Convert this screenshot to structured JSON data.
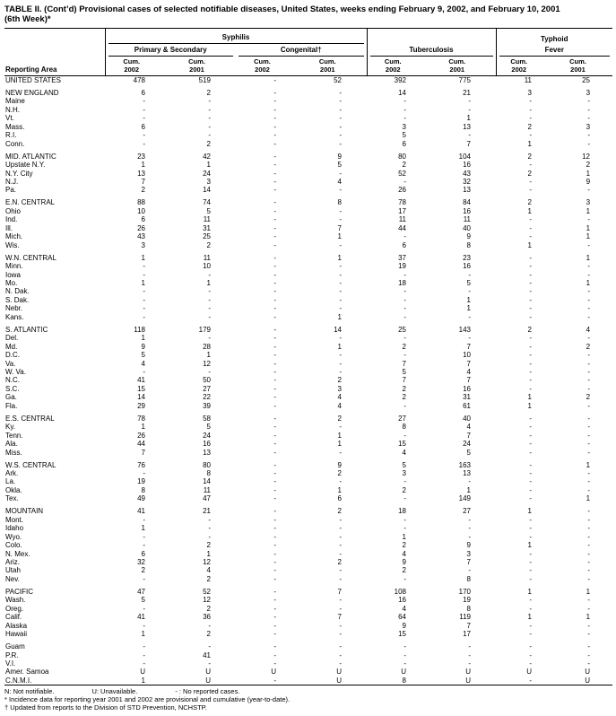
{
  "page": {
    "title_line1": "TABLE II. (Cont’d) Provisional cases of selected notifiable diseases, United States, weeks ending February 9, 2002, and February 10, 2001",
    "title_line2": "(6th Week)*"
  },
  "table": {
    "header": {
      "reporting_area": "Reporting Area",
      "groups": {
        "syphilis": "Syphilis",
        "typhoid": "Typhoid"
      },
      "subgroups": {
        "primary_secondary": "Primary & Secondary",
        "congenital": "Congenital†",
        "tuberculosis": "Tuberculosis",
        "fever": "Fever"
      },
      "cum_columns": [
        {
          "line1": "Cum.",
          "line2": "2002"
        },
        {
          "line1": "Cum.",
          "line2": "2001"
        },
        {
          "line1": "Cum.",
          "line2": "2002"
        },
        {
          "line1": "Cum.",
          "line2": "2001"
        },
        {
          "line1": "Cum.",
          "line2": "2002"
        },
        {
          "line1": "Cum.",
          "line2": "2001"
        },
        {
          "line1": "Cum.",
          "line2": "2002"
        },
        {
          "line1": "Cum.",
          "line2": "2001"
        }
      ]
    },
    "groups": [
      {
        "rows": [
          {
            "area": "UNITED STATES",
            "values": [
              "478",
              "519",
              "-",
              "52",
              "392",
              "775",
              "11",
              "25"
            ]
          }
        ]
      },
      {
        "rows": [
          {
            "area": "NEW ENGLAND",
            "values": [
              "6",
              "2",
              "-",
              "-",
              "14",
              "21",
              "3",
              "3"
            ]
          },
          {
            "area": "Maine",
            "values": [
              "-",
              "-",
              "-",
              "-",
              "-",
              "-",
              "-",
              "-"
            ]
          },
          {
            "area": "N.H.",
            "values": [
              "-",
              "-",
              "-",
              "-",
              "-",
              "-",
              "-",
              "-"
            ]
          },
          {
            "area": "Vt.",
            "values": [
              "-",
              "-",
              "-",
              "-",
              "-",
              "1",
              "-",
              "-"
            ]
          },
          {
            "area": "Mass.",
            "values": [
              "6",
              "-",
              "-",
              "-",
              "3",
              "13",
              "2",
              "3"
            ]
          },
          {
            "area": "R.I.",
            "values": [
              "-",
              "-",
              "-",
              "-",
              "5",
              "-",
              "-",
              "-"
            ]
          },
          {
            "area": "Conn.",
            "values": [
              "-",
              "2",
              "-",
              "-",
              "6",
              "7",
              "1",
              "-"
            ]
          }
        ]
      },
      {
        "rows": [
          {
            "area": "MID. ATLANTIC",
            "values": [
              "23",
              "42",
              "-",
              "9",
              "80",
              "104",
              "2",
              "12"
            ]
          },
          {
            "area": "Upstate N.Y.",
            "values": [
              "1",
              "1",
              "-",
              "5",
              "2",
              "16",
              "-",
              "2"
            ]
          },
          {
            "area": "N.Y. City",
            "values": [
              "13",
              "24",
              "-",
              "-",
              "52",
              "43",
              "2",
              "1"
            ]
          },
          {
            "area": "N.J.",
            "values": [
              "7",
              "3",
              "-",
              "4",
              "-",
              "32",
              "-",
              "9"
            ]
          },
          {
            "area": "Pa.",
            "values": [
              "2",
              "14",
              "-",
              "-",
              "26",
              "13",
              "-",
              "-"
            ]
          }
        ]
      },
      {
        "rows": [
          {
            "area": "E.N. CENTRAL",
            "values": [
              "88",
              "74",
              "-",
              "8",
              "78",
              "84",
              "2",
              "3"
            ]
          },
          {
            "area": "Ohio",
            "values": [
              "10",
              "5",
              "-",
              "-",
              "17",
              "16",
              "1",
              "1"
            ]
          },
          {
            "area": "Ind.",
            "values": [
              "6",
              "11",
              "-",
              "-",
              "11",
              "11",
              "-",
              "-"
            ]
          },
          {
            "area": "Ill.",
            "values": [
              "26",
              "31",
              "-",
              "7",
              "44",
              "40",
              "-",
              "1"
            ]
          },
          {
            "area": "Mich.",
            "values": [
              "43",
              "25",
              "-",
              "1",
              "-",
              "9",
              "-",
              "1"
            ]
          },
          {
            "area": "Wis.",
            "values": [
              "3",
              "2",
              "-",
              "-",
              "6",
              "8",
              "1",
              "-"
            ]
          }
        ]
      },
      {
        "rows": [
          {
            "area": "W.N. CENTRAL",
            "values": [
              "1",
              "11",
              "-",
              "1",
              "37",
              "23",
              "-",
              "1"
            ]
          },
          {
            "area": "Minn.",
            "values": [
              "-",
              "10",
              "-",
              "-",
              "19",
              "16",
              "-",
              "-"
            ]
          },
          {
            "area": "Iowa",
            "values": [
              "-",
              "-",
              "-",
              "-",
              "-",
              "-",
              "-",
              "-"
            ]
          },
          {
            "area": "Mo.",
            "values": [
              "1",
              "1",
              "-",
              "-",
              "18",
              "5",
              "-",
              "1"
            ]
          },
          {
            "area": "N. Dak.",
            "values": [
              "-",
              "-",
              "-",
              "-",
              "-",
              "-",
              "-",
              "-"
            ]
          },
          {
            "area": "S. Dak.",
            "values": [
              "-",
              "-",
              "-",
              "-",
              "-",
              "1",
              "-",
              "-"
            ]
          },
          {
            "area": "Nebr.",
            "values": [
              "-",
              "-",
              "-",
              "-",
              "-",
              "1",
              "-",
              "-"
            ]
          },
          {
            "area": "Kans.",
            "values": [
              "-",
              "-",
              "-",
              "1",
              "-",
              "-",
              "-",
              "-"
            ]
          }
        ]
      },
      {
        "rows": [
          {
            "area": "S. ATLANTIC",
            "values": [
              "118",
              "179",
              "-",
              "14",
              "25",
              "143",
              "2",
              "4"
            ]
          },
          {
            "area": "Del.",
            "values": [
              "1",
              "-",
              "-",
              "-",
              "-",
              "-",
              "-",
              "-"
            ]
          },
          {
            "area": "Md.",
            "values": [
              "9",
              "28",
              "-",
              "1",
              "2",
              "7",
              "-",
              "2"
            ]
          },
          {
            "area": "D.C.",
            "values": [
              "5",
              "1",
              "-",
              "-",
              "-",
              "10",
              "-",
              "-"
            ]
          },
          {
            "area": "Va.",
            "values": [
              "4",
              "12",
              "-",
              "-",
              "7",
              "7",
              "-",
              "-"
            ]
          },
          {
            "area": "W. Va.",
            "values": [
              "-",
              "-",
              "-",
              "-",
              "5",
              "4",
              "-",
              "-"
            ]
          },
          {
            "area": "N.C.",
            "values": [
              "41",
              "50",
              "-",
              "2",
              "7",
              "7",
              "-",
              "-"
            ]
          },
          {
            "area": "S.C.",
            "values": [
              "15",
              "27",
              "-",
              "3",
              "2",
              "16",
              "-",
              "-"
            ]
          },
          {
            "area": "Ga.",
            "values": [
              "14",
              "22",
              "-",
              "4",
              "2",
              "31",
              "1",
              "2"
            ]
          },
          {
            "area": "Fla.",
            "values": [
              "29",
              "39",
              "-",
              "4",
              "-",
              "61",
              "1",
              "-"
            ]
          }
        ]
      },
      {
        "rows": [
          {
            "area": "E.S. CENTRAL",
            "values": [
              "78",
              "58",
              "-",
              "2",
              "27",
              "40",
              "-",
              "-"
            ]
          },
          {
            "area": "Ky.",
            "values": [
              "1",
              "5",
              "-",
              "-",
              "8",
              "4",
              "-",
              "-"
            ]
          },
          {
            "area": "Tenn.",
            "values": [
              "26",
              "24",
              "-",
              "1",
              "-",
              "7",
              "-",
              "-"
            ]
          },
          {
            "area": "Ala.",
            "values": [
              "44",
              "16",
              "-",
              "1",
              "15",
              "24",
              "-",
              "-"
            ]
          },
          {
            "area": "Miss.",
            "values": [
              "7",
              "13",
              "-",
              "-",
              "4",
              "5",
              "-",
              "-"
            ]
          }
        ]
      },
      {
        "rows": [
          {
            "area": "W.S. CENTRAL",
            "values": [
              "76",
              "80",
              "-",
              "9",
              "5",
              "163",
              "-",
              "1"
            ]
          },
          {
            "area": "Ark.",
            "values": [
              "-",
              "8",
              "-",
              "2",
              "3",
              "13",
              "-",
              "-"
            ]
          },
          {
            "area": "La.",
            "values": [
              "19",
              "14",
              "-",
              "-",
              "-",
              "-",
              "-",
              "-"
            ]
          },
          {
            "area": "Okla.",
            "values": [
              "8",
              "11",
              "-",
              "1",
              "2",
              "1",
              "-",
              "-"
            ]
          },
          {
            "area": "Tex.",
            "values": [
              "49",
              "47",
              "-",
              "6",
              "-",
              "149",
              "-",
              "1"
            ]
          }
        ]
      },
      {
        "rows": [
          {
            "area": "MOUNTAIN",
            "values": [
              "41",
              "21",
              "-",
              "2",
              "18",
              "27",
              "1",
              "-"
            ]
          },
          {
            "area": "Mont.",
            "values": [
              "-",
              "-",
              "-",
              "-",
              "-",
              "-",
              "-",
              "-"
            ]
          },
          {
            "area": "Idaho",
            "values": [
              "1",
              "-",
              "-",
              "-",
              "-",
              "-",
              "-",
              "-"
            ]
          },
          {
            "area": "Wyo.",
            "values": [
              "-",
              "-",
              "-",
              "-",
              "1",
              "-",
              "-",
              "-"
            ]
          },
          {
            "area": "Colo.",
            "values": [
              "-",
              "2",
              "-",
              "-",
              "2",
              "9",
              "1",
              "-"
            ]
          },
          {
            "area": "N. Mex.",
            "values": [
              "6",
              "1",
              "-",
              "-",
              "4",
              "3",
              "-",
              "-"
            ]
          },
          {
            "area": "Ariz.",
            "values": [
              "32",
              "12",
              "-",
              "2",
              "9",
              "7",
              "-",
              "-"
            ]
          },
          {
            "area": "Utah",
            "values": [
              "2",
              "4",
              "-",
              "-",
              "2",
              "-",
              "-",
              "-"
            ]
          },
          {
            "area": "Nev.",
            "values": [
              "-",
              "2",
              "-",
              "-",
              "-",
              "8",
              "-",
              "-"
            ]
          }
        ]
      },
      {
        "rows": [
          {
            "area": "PACIFIC",
            "values": [
              "47",
              "52",
              "-",
              "7",
              "108",
              "170",
              "1",
              "1"
            ]
          },
          {
            "area": "Wash.",
            "values": [
              "5",
              "12",
              "-",
              "-",
              "16",
              "19",
              "-",
              "-"
            ]
          },
          {
            "area": "Oreg.",
            "values": [
              "-",
              "2",
              "-",
              "-",
              "4",
              "8",
              "-",
              "-"
            ]
          },
          {
            "area": "Calif.",
            "values": [
              "41",
              "36",
              "-",
              "7",
              "64",
              "119",
              "1",
              "1"
            ]
          },
          {
            "area": "Alaska",
            "values": [
              "-",
              "-",
              "-",
              "-",
              "9",
              "7",
              "-",
              "-"
            ]
          },
          {
            "area": "Hawaii",
            "values": [
              "1",
              "2",
              "-",
              "-",
              "15",
              "17",
              "-",
              "-"
            ]
          }
        ]
      },
      {
        "rows": [
          {
            "area": "Guam",
            "values": [
              "-",
              "-",
              "-",
              "-",
              "-",
              "-",
              "-",
              "-"
            ]
          },
          {
            "area": "P.R.",
            "values": [
              "-",
              "41",
              "-",
              "-",
              "-",
              "-",
              "-",
              "-"
            ]
          },
          {
            "area": "V.I.",
            "values": [
              "-",
              "-",
              "-",
              "-",
              "-",
              "-",
              "-",
              "-"
            ]
          },
          {
            "area": "Amer. Samoa",
            "values": [
              "U",
              "U",
              "U",
              "U",
              "U",
              "U",
              "U",
              "U"
            ]
          },
          {
            "area": "C.N.M.I.",
            "values": [
              "1",
              "U",
              "-",
              "U",
              "8",
              "U",
              "-",
              "U"
            ]
          }
        ]
      }
    ]
  },
  "footnotes": {
    "legend": [
      "N: Not notifiable.",
      "U: Unavailable.",
      "- : No reported cases."
    ],
    "note_star": "* Incidence data for reporting year 2001 and 2002 are provisional and cumulative (year-to-date).",
    "note_dagger": "† Updated from reports to the Division of STD Prevention, NCHSTP."
  }
}
